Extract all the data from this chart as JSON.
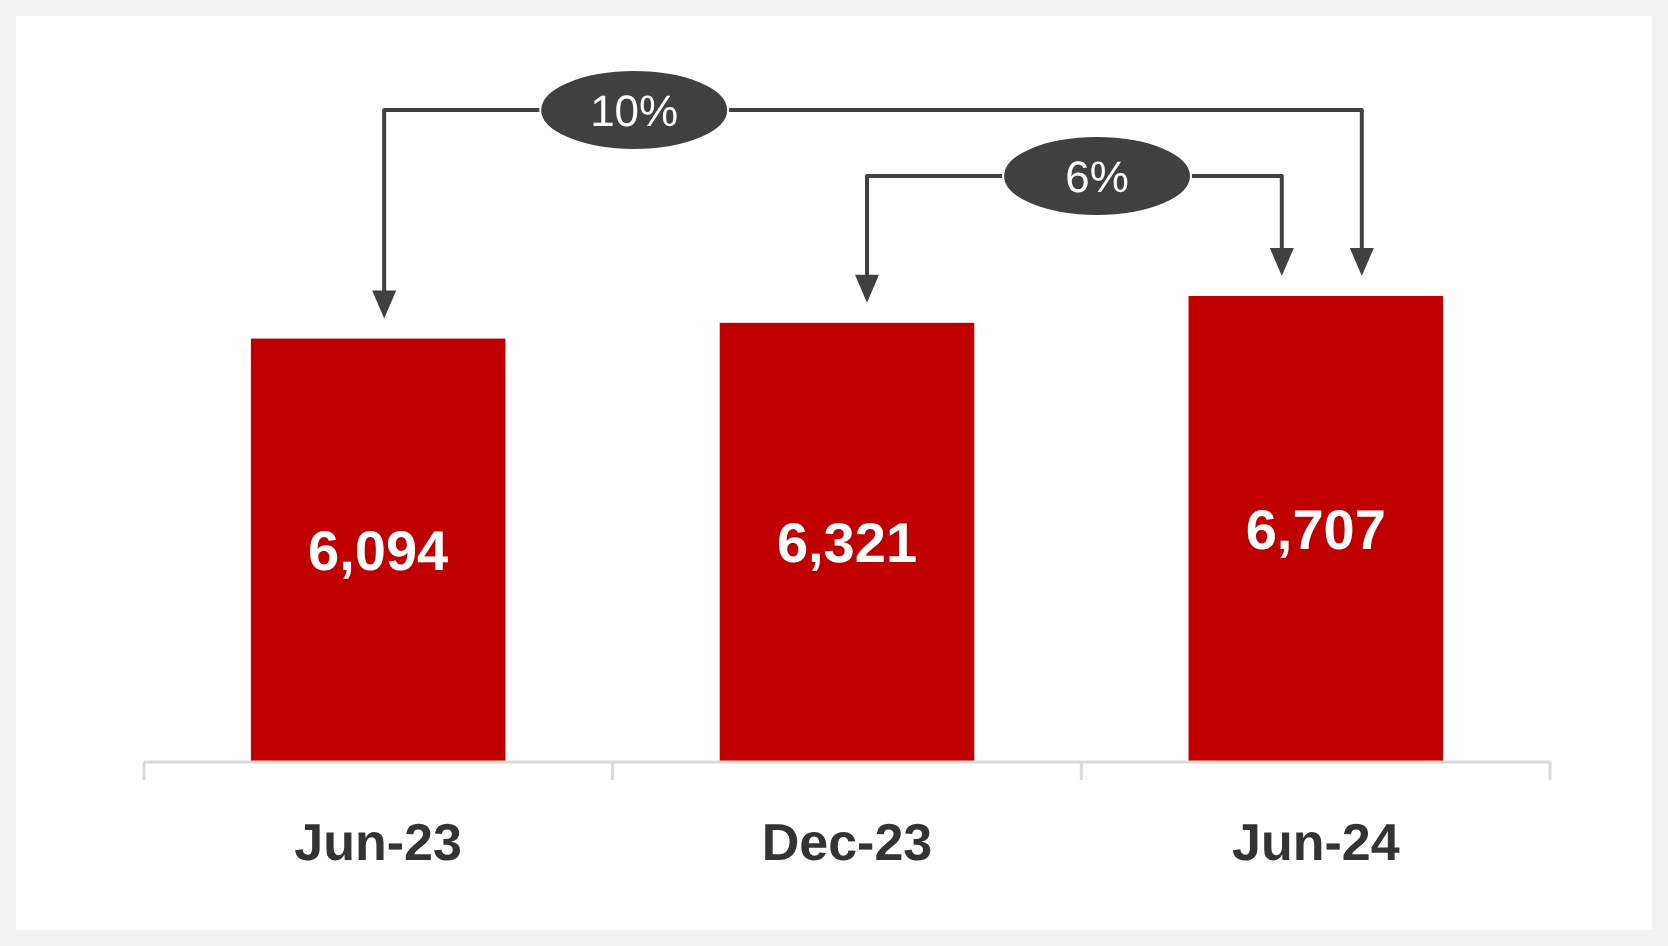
{
  "chart_data": {
    "type": "bar",
    "categories": [
      "Jun-23",
      "Dec-23",
      "Jun-24"
    ],
    "values": [
      6094,
      6321,
      6707
    ],
    "color": "#c00000",
    "value_labels": [
      "6,094",
      "6,321",
      "6,707"
    ],
    "annotations": [
      "10%",
      "6%"
    ]
  }
}
